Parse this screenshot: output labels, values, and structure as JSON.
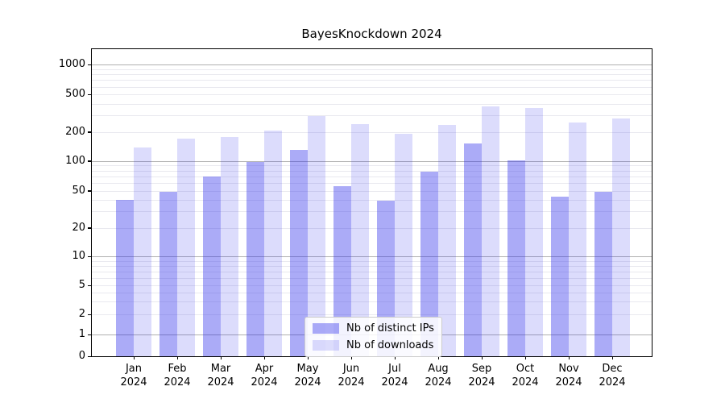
{
  "chart_data": {
    "type": "bar",
    "title": "BayesKnockdown 2024",
    "categories": [
      "Jan",
      "Feb",
      "Mar",
      "Apr",
      "May",
      "Jun",
      "Jul",
      "Aug",
      "Sep",
      "Oct",
      "Nov",
      "Dec"
    ],
    "x_year_label": "2024",
    "series": [
      {
        "name": "Nb of distinct IPs",
        "color": "rgba(45,45,235,0.40)",
        "color_hex_on_white": "#a8a8f3",
        "values": [
          40,
          49,
          70,
          98,
          130,
          56,
          39,
          78,
          152,
          102,
          43,
          49
        ]
      },
      {
        "name": "Nb of downloads",
        "color": "rgba(45,45,235,0.17)",
        "color_hex_on_white": "#dcdcfb",
        "values": [
          137,
          170,
          178,
          205,
          295,
          240,
          190,
          237,
          375,
          360,
          250,
          275
        ]
      }
    ],
    "xlabel": "",
    "ylabel": "",
    "y_scale": "symlog",
    "y_ticks": [
      0,
      1,
      2,
      5,
      10,
      20,
      50,
      100,
      200,
      500,
      1000
    ],
    "ylim": [
      0,
      1400
    ],
    "grid": "both",
    "legend_position": "lower center",
    "colors": {
      "grid_major": "#b0b0b0",
      "grid_minor": "#e9e9ef",
      "axis": "#000000",
      "legend_border": "#cccccc",
      "background": "#ffffff"
    }
  }
}
